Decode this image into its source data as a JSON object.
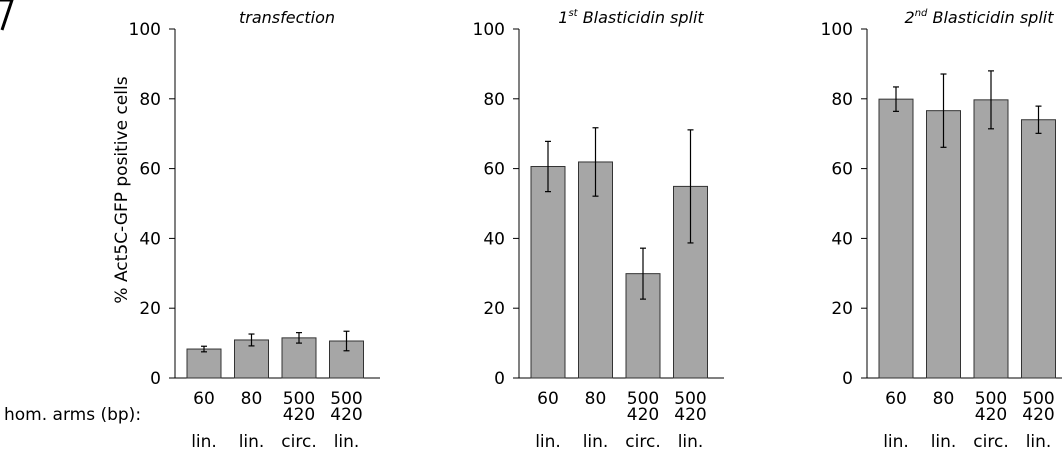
{
  "figure": {
    "row_label": "hom. arms (bp):",
    "ylabel": "% Act5C-GFP positive cells",
    "colors": {
      "bar_fill": "#a6a6a6",
      "bar_stroke": "#333333",
      "axis": "#000000"
    }
  },
  "chart_data": [
    {
      "type": "bar",
      "title": "transfection",
      "title_prefix": "",
      "title_sup": "",
      "ylim": [
        0,
        100
      ],
      "yticks": [
        0,
        20,
        40,
        60,
        80,
        100
      ],
      "categories": [
        {
          "arm": "60",
          "arm2": "",
          "form": "lin."
        },
        {
          "arm": "80",
          "arm2": "",
          "form": "lin."
        },
        {
          "arm": "500",
          "arm2": "420",
          "form": "circ."
        },
        {
          "arm": "500",
          "arm2": "420",
          "form": "lin."
        }
      ],
      "values": [
        8.3,
        10.9,
        11.5,
        10.6
      ],
      "errors": [
        0.8,
        1.7,
        1.5,
        2.8
      ]
    },
    {
      "type": "bar",
      "title": "Blasticidin split",
      "title_prefix": "1",
      "title_sup": "st",
      "ylim": [
        0,
        100
      ],
      "yticks": [
        0,
        20,
        40,
        60,
        80,
        100
      ],
      "categories": [
        {
          "arm": "60",
          "arm2": "",
          "form": "lin."
        },
        {
          "arm": "80",
          "arm2": "",
          "form": "lin."
        },
        {
          "arm": "500",
          "arm2": "420",
          "form": "circ."
        },
        {
          "arm": "500",
          "arm2": "420",
          "form": "lin."
        }
      ],
      "values": [
        60.6,
        61.9,
        29.9,
        54.9
      ],
      "errors": [
        7.2,
        9.8,
        7.3,
        16.2
      ]
    },
    {
      "type": "bar",
      "title": "Blasticidin split",
      "title_prefix": "2",
      "title_sup": "nd",
      "ylim": [
        0,
        100
      ],
      "yticks": [
        0,
        20,
        40,
        60,
        80,
        100
      ],
      "categories": [
        {
          "arm": "60",
          "arm2": "",
          "form": "lin."
        },
        {
          "arm": "80",
          "arm2": "",
          "form": "lin."
        },
        {
          "arm": "500",
          "arm2": "420",
          "form": "circ."
        },
        {
          "arm": "500",
          "arm2": "420",
          "form": "lin."
        }
      ],
      "values": [
        79.9,
        76.6,
        79.7,
        74.0
      ],
      "errors": [
        3.5,
        10.5,
        8.3,
        3.9
      ]
    }
  ]
}
